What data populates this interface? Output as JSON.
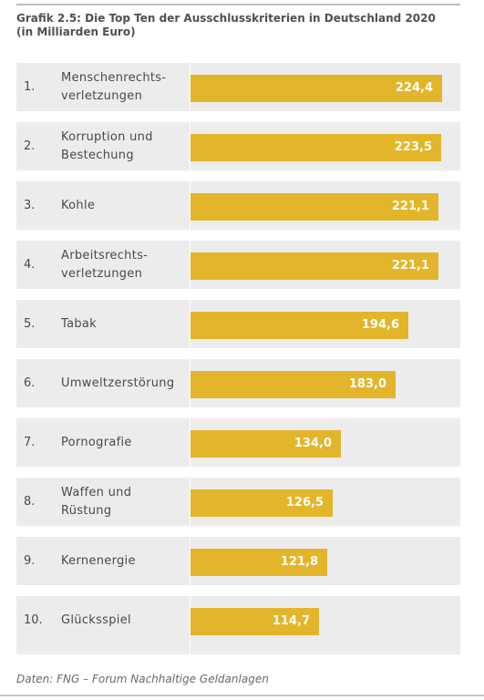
{
  "title_lines": [
    "Grafik 2.5: Die Top Ten der Ausschlusskriterien in Deutschland 2020",
    "(in Milliarden Euro)"
  ],
  "source": "Daten: FNG – Forum Nachhaltige Geldanlagen",
  "colors": {
    "bar": "#e3b52a",
    "panel": "#ececec",
    "value_text": "#ffffff"
  },
  "chart_data": {
    "type": "bar",
    "orientation": "horizontal",
    "title": "Grafik 2.5: Die Top Ten der Ausschlusskriterien in Deutschland 2020 (in Milliarden Euro)",
    "ranks": [
      "1.",
      "2.",
      "3.",
      "4.",
      "5.",
      "6.",
      "7.",
      "8.",
      "9.",
      "10."
    ],
    "categories": [
      "Menschenrechts-\nverletzungen",
      "Korruption und\nBestechung",
      "Kohle",
      "Arbeitsrechts-\nverletzungen",
      "Tabak",
      "Umweltzerstörung",
      "Pornografie",
      "Waffen und\nRüstung",
      "Kernenergie",
      "Glücksspiel"
    ],
    "values": [
      224.4,
      223.5,
      221.1,
      221.1,
      194.6,
      183.0,
      134.0,
      126.5,
      121.8,
      114.7
    ],
    "value_labels": [
      "224,4",
      "223,5",
      "221,1",
      "221,1",
      "194,6",
      "183,0",
      "134,0",
      "126,5",
      "121,8",
      "114,7"
    ],
    "xlim": [
      0,
      224.4
    ]
  }
}
